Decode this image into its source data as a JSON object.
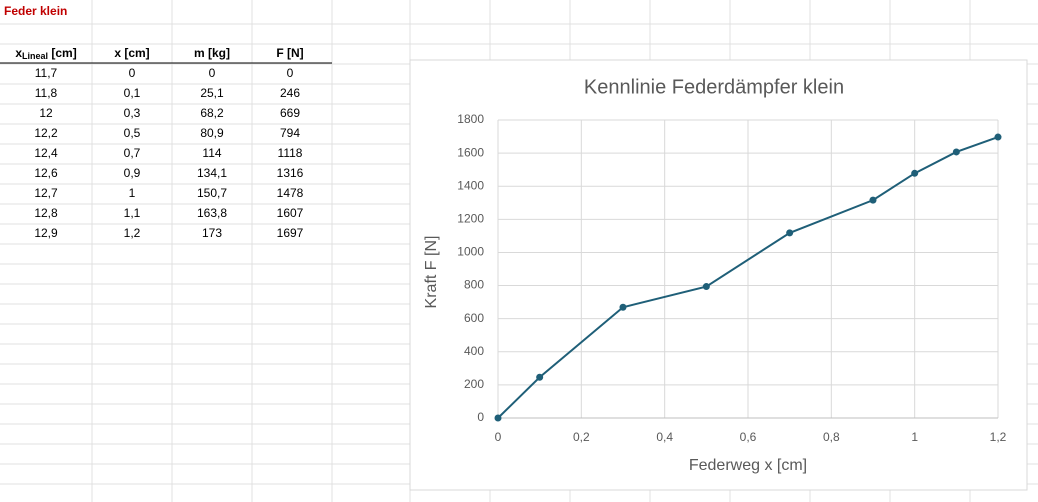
{
  "sheet": {
    "title": "Feder klein",
    "table": {
      "header": [
        {
          "text": "x",
          "sub": "Lineal",
          "rest": " [cm]"
        },
        "x [cm]",
        "m [kg]",
        "F [N]"
      ],
      "rows": [
        [
          "11,7",
          "0",
          "0",
          "0"
        ],
        [
          "11,8",
          "0,1",
          "25,1",
          "246"
        ],
        [
          "12",
          "0,3",
          "68,2",
          "669"
        ],
        [
          "12,2",
          "0,5",
          "80,9",
          "794"
        ],
        [
          "12,4",
          "0,7",
          "114",
          "1118"
        ],
        [
          "12,6",
          "0,9",
          "134,1",
          "1316"
        ],
        [
          "12,7",
          "1",
          "150,7",
          "1478"
        ],
        [
          "12,8",
          "1,1",
          "163,8",
          "1607"
        ],
        [
          "12,9",
          "1,2",
          "173",
          "1697"
        ]
      ]
    }
  },
  "chart_data": {
    "type": "line",
    "title": "Kennlinie Federdämpfer klein",
    "x_label": "Federweg x [cm]",
    "y_label": "Kraft F [N]",
    "x": [
      0,
      0.1,
      0.3,
      0.5,
      0.7,
      0.9,
      1,
      1.1,
      1.2
    ],
    "values": [
      0,
      246,
      669,
      794,
      1118,
      1316,
      1478,
      1607,
      1697
    ],
    "color": "#1f5f78",
    "markers": true,
    "grid": true,
    "xlim": [
      0,
      1.2
    ],
    "xticks": [
      0,
      {
        "value": 0.2,
        "label": "0,2"
      },
      {
        "value": 0.4,
        "label": "0,4"
      },
      {
        "value": 0.6,
        "label": "0,6"
      },
      {
        "value": 0.8,
        "label": "0,8"
      },
      1,
      {
        "value": 1.2,
        "label": "1,2"
      }
    ],
    "ylim": [
      0,
      1800
    ],
    "yticks": [
      0,
      200,
      400,
      600,
      800,
      1000,
      1200,
      1400,
      1600,
      1800
    ]
  }
}
